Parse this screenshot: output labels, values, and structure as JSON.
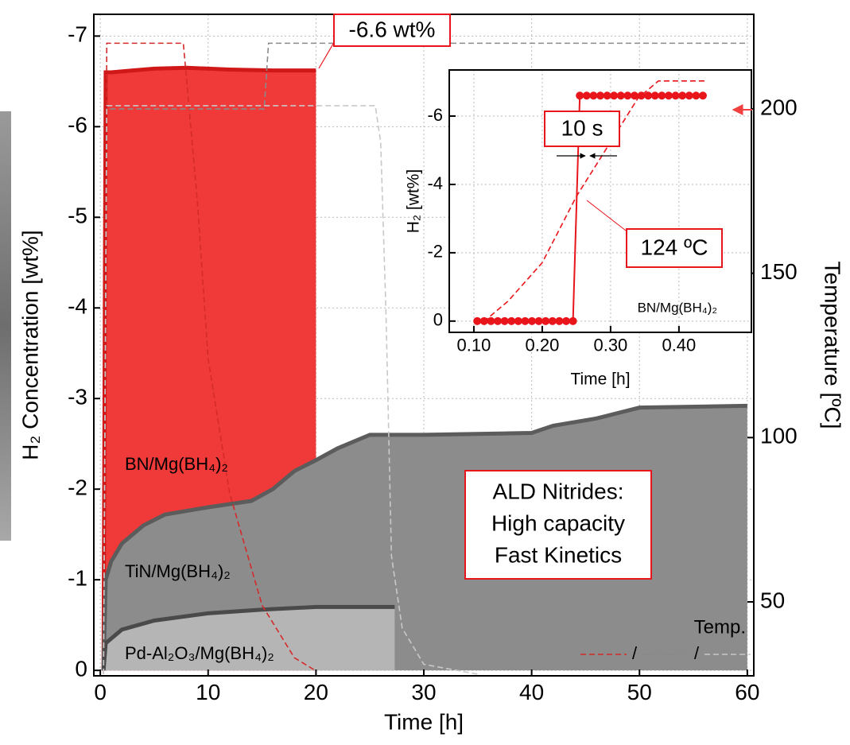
{
  "chart_data": [
    {
      "type": "area",
      "x_label": "Time [h]",
      "y_label": "H₂ Concentration [wt%]",
      "y2_label": "Temperature [ºC]",
      "xlim": [
        -0.6,
        60.6
      ],
      "ylim": [
        0.06,
        -7.24
      ],
      "y2lim": [
        27.5,
        228.8
      ],
      "xticks": [
        0,
        10,
        20,
        30,
        40,
        50,
        60
      ],
      "yticks": [
        0,
        -1,
        -2,
        -3,
        -4,
        -5,
        -6,
        -7
      ],
      "y2ticks": [
        50,
        100,
        150,
        200
      ],
      "grid": true,
      "series": [
        {
          "name": "BN/Mg(BH₄)₂",
          "color": "#f03a3a",
          "edge_color": "#d01818",
          "fill": true,
          "x": [
            0.3,
            0.5,
            1,
            3,
            5,
            8,
            12,
            16,
            20
          ],
          "values": [
            0,
            -6.6,
            -6.6,
            -6.62,
            -6.64,
            -6.65,
            -6.63,
            -6.62,
            -6.62
          ]
        },
        {
          "name": "TiN/Mg(BH₄)₂",
          "color": "#8c8c8c",
          "edge_color": "#5c5c5c",
          "fill": true,
          "x": [
            0.3,
            0.5,
            1,
            2,
            4,
            6,
            10,
            14,
            16,
            18,
            20,
            22,
            25,
            30,
            40,
            42,
            46,
            50,
            60
          ],
          "values": [
            0,
            -1.0,
            -1.2,
            -1.4,
            -1.6,
            -1.72,
            -1.8,
            -1.87,
            -2.0,
            -2.2,
            -2.32,
            -2.45,
            -2.6,
            -2.6,
            -2.62,
            -2.7,
            -2.78,
            -2.9,
            -2.92
          ]
        },
        {
          "name": "Pd-Al₂O₃/Mg(BH₄)₂",
          "color": "#b5b5b5",
          "edge_color": "#4a4a4a",
          "fill": true,
          "x": [
            0.3,
            0.5,
            2,
            5,
            10,
            15,
            20,
            27.3
          ],
          "values": [
            0,
            -0.3,
            -0.45,
            -0.55,
            -0.63,
            -0.67,
            -0.7,
            -0.7
          ]
        },
        {
          "color": "#d42a2a",
          "dash": true,
          "axis": "y2",
          "x": [
            0.3,
            0.6,
            7.7,
            9,
            10,
            12,
            15,
            18,
            20
          ],
          "values": [
            28,
            220,
            220,
            172,
            124,
            83,
            49,
            33,
            29
          ]
        },
        {
          "color": "#8a8a8a",
          "dash": true,
          "axis": "y2",
          "x": [
            0.3,
            0.6,
            15.2,
            15.6,
            60
          ],
          "values": [
            28,
            200,
            200,
            220,
            220
          ]
        },
        {
          "color": "#c8c8c8",
          "dash": true,
          "axis": "y2",
          "x": [
            0.3,
            0.6,
            25.5,
            26,
            26.5,
            27,
            28,
            30,
            35
          ],
          "values": [
            28,
            201,
            201,
            190,
            137,
            64,
            42,
            31,
            28
          ]
        }
      ],
      "legend_title": "Temp.",
      "legend_separator": "/",
      "peak_label": "-6.6 wt%",
      "callout": [
        "ALD Nitrides:",
        "High capacity",
        "Fast Kinetics"
      ]
    },
    {
      "type": "line",
      "x_label": "Time [h]",
      "y_label": "H₂ [wt%]",
      "xlim": [
        0.064,
        0.506
      ],
      "ylim": [
        0.33,
        -7.35
      ],
      "y2lim": [
        21.5,
        219.3
      ],
      "xticks": [
        {
          "value": 0.1,
          "label": "0.10"
        },
        {
          "value": 0.2,
          "label": "0.20"
        },
        {
          "value": 0.3,
          "label": "0.30"
        },
        {
          "value": 0.4,
          "label": "0.40"
        }
      ],
      "yticks": [
        0,
        -2,
        -4,
        -6
      ],
      "grid": true,
      "series": [
        {
          "name": "BN/Mg(BH₄)₂",
          "color": "#e8151b",
          "marker": true,
          "x": [
            0.105,
            0.115,
            0.125,
            0.135,
            0.145,
            0.155,
            0.165,
            0.175,
            0.185,
            0.195,
            0.205,
            0.215,
            0.225,
            0.235,
            0.245,
            0.255,
            0.265,
            0.275,
            0.285,
            0.295,
            0.305,
            0.315,
            0.325,
            0.335,
            0.345,
            0.355,
            0.365,
            0.375,
            0.385,
            0.395,
            0.405,
            0.415,
            0.425,
            0.435
          ],
          "values": [
            0,
            0,
            0,
            0,
            0,
            0,
            0,
            0,
            0,
            0,
            0,
            0,
            0,
            0,
            0,
            -6.6,
            -6.6,
            -6.6,
            -6.6,
            -6.6,
            -6.6,
            -6.6,
            -6.6,
            -6.6,
            -6.6,
            -6.6,
            -6.6,
            -6.6,
            -6.6,
            -6.6,
            -6.6,
            -6.6,
            -6.6,
            -6.6
          ]
        },
        {
          "color": "#e8151b",
          "dash": true,
          "axis": "y2",
          "x": [
            0.1,
            0.12,
            0.15,
            0.2,
            0.25,
            0.3,
            0.34,
            0.37,
            0.44
          ],
          "values": [
            30,
            32,
            45,
            74,
            124,
            165,
            198,
            211,
            211
          ]
        }
      ],
      "step_label": "10 s",
      "crossing_label": "124 ºC"
    }
  ]
}
